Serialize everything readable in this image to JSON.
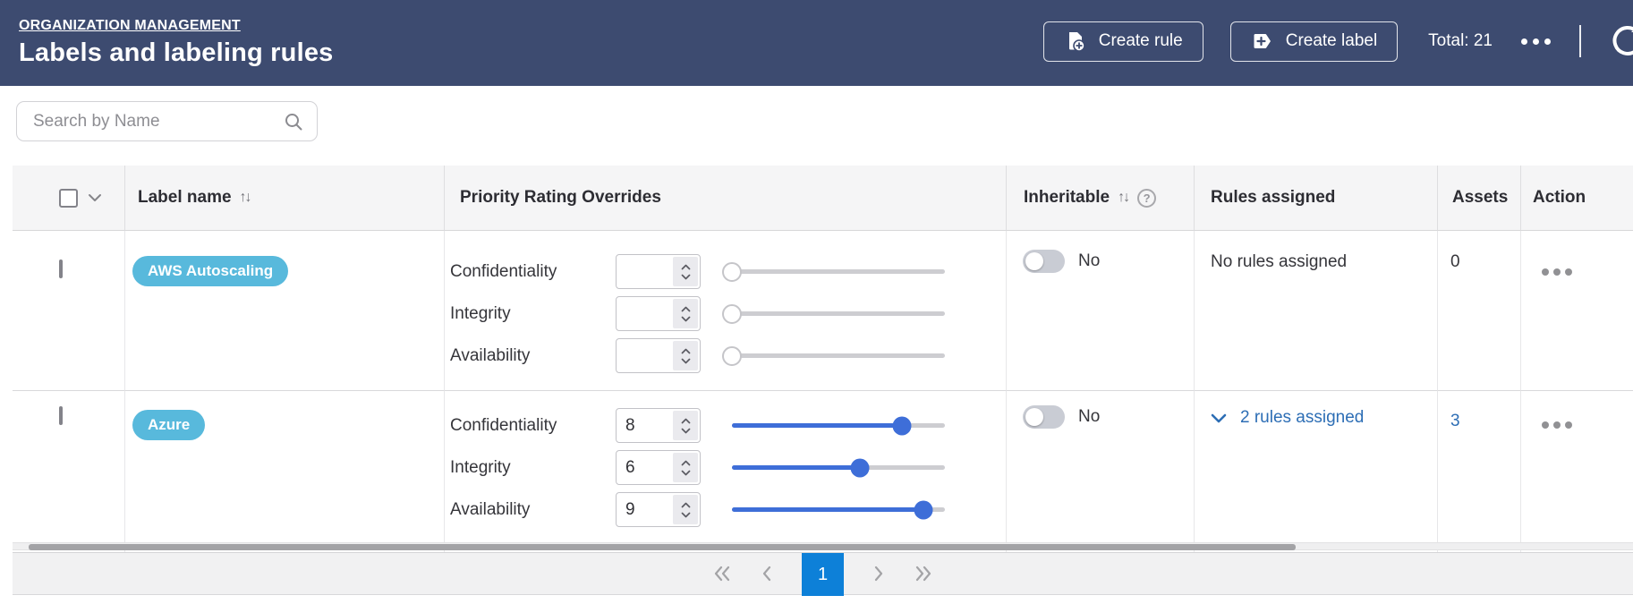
{
  "top_bar": {
    "breadcrumb": "ORGANIZATION MANAGEMENT",
    "title": "Labels and labeling rules",
    "create_rule_label": "Create rule",
    "create_label_label": "Create label",
    "total": "Total: 21"
  },
  "search": {
    "placeholder": "Search by Name"
  },
  "table": {
    "headers": {
      "label_name": "Label name",
      "priority": "Priority Rating Overrides",
      "inheritable": "Inheritable",
      "rules": "Rules assigned",
      "assets": "Assets",
      "action": "Action"
    },
    "priority_fields": [
      "Confidentiality",
      "Integrity",
      "Availability"
    ],
    "rows": [
      {
        "label": "AWS Autoscaling",
        "values": [
          "",
          "",
          ""
        ],
        "inheritable": "No",
        "rules_text": "No rules assigned",
        "assets": "0"
      },
      {
        "label": "Azure",
        "values": [
          "8",
          "6",
          "9"
        ],
        "inheritable": "No",
        "rules_text": "2 rules assigned",
        "assets": "3"
      }
    ]
  },
  "pagination": {
    "current": "1"
  },
  "colors": {
    "header_bg": "#3d4b70",
    "badge": "#58b9dc",
    "slider_accent": "#3e6ed8",
    "link": "#2d6eb5",
    "page_active": "#0d80d8"
  }
}
